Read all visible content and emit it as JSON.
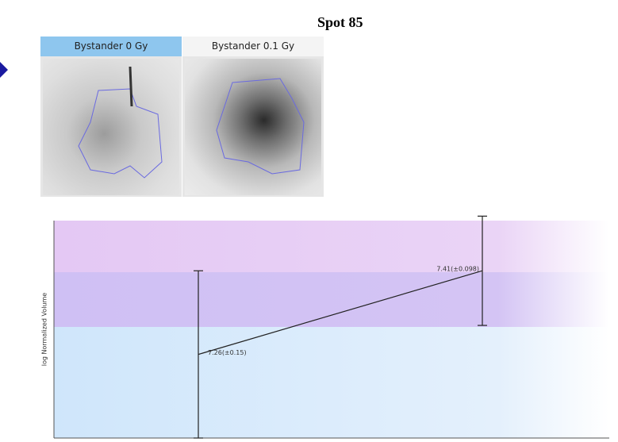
{
  "title": "Spot 85",
  "panels": [
    {
      "label": "Bystander 0 Gy"
    },
    {
      "label": "Bystander 0.1 Gy"
    }
  ],
  "chart_data": {
    "type": "errorbar",
    "y_label": "log Normalized Volume",
    "values": [
      7.26,
      7.41
    ],
    "errors": [
      0.15,
      0.098
    ],
    "value_labels": [
      "7.26(±0.15)",
      "7.41(±0.098)"
    ],
    "ylim": [
      7.11,
      7.5
    ]
  }
}
